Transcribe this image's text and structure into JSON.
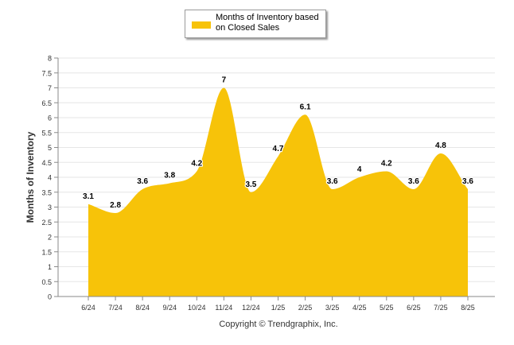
{
  "chart_data": {
    "type": "area",
    "x": [
      "6/24",
      "7/24",
      "8/24",
      "9/24",
      "10/24",
      "11/24",
      "12/24",
      "1/25",
      "2/25",
      "3/25",
      "4/25",
      "5/25",
      "6/25",
      "7/25",
      "8/25"
    ],
    "series": [
      {
        "name": "Months of Inventory based on Closed Sales",
        "values": [
          3.1,
          2.8,
          3.6,
          3.8,
          4.2,
          7,
          3.5,
          4.7,
          6.1,
          3.6,
          4,
          4.2,
          3.6,
          4.8,
          3.6
        ],
        "color": "#f7c309"
      }
    ],
    "ylabel": "Months of Inventory",
    "ylim": [
      0,
      8
    ],
    "yticks": [
      "0",
      "0.5",
      "1",
      "1.5",
      "2",
      "2.5",
      "3",
      "3.5",
      "4",
      "4.5",
      "5",
      "5.5",
      "6",
      "6.5",
      "7",
      "7.5",
      "8"
    ],
    "grid": true,
    "legend_position": "top-center"
  },
  "legend_label": "Months of Inventory based on Closed Sales",
  "copyright": "Copyright © Trendgraphix, Inc."
}
